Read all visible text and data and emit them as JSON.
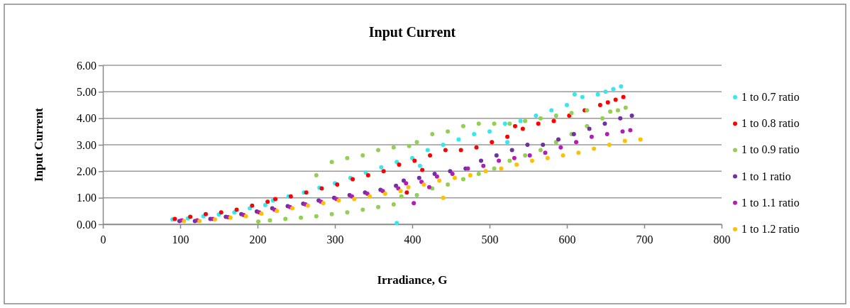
{
  "chart_data": {
    "type": "scatter",
    "title": "Input Current",
    "xlabel": "Irradiance, G",
    "ylabel": "Input Current",
    "xlim": [
      0,
      800
    ],
    "xticks": [
      0,
      100,
      200,
      300,
      400,
      500,
      600,
      700,
      800
    ],
    "ylim": [
      0,
      6
    ],
    "yticks": [
      {
        "value": 0,
        "label": "0.00"
      },
      {
        "value": 1,
        "label": "1.00"
      },
      {
        "value": 2,
        "label": "2.00"
      },
      {
        "value": 3,
        "label": "3.00"
      },
      {
        "value": 4,
        "label": "4.00"
      },
      {
        "value": 5,
        "label": "5.00"
      },
      {
        "value": 6,
        "label": "6.00"
      }
    ],
    "grid": "y",
    "legend": "right",
    "marker": "circle",
    "series": [
      {
        "name": "1 to 0.7 ratio",
        "color": "#33e8f0",
        "x": [
          90,
          110,
          130,
          150,
          170,
          190,
          210,
          220,
          240,
          260,
          280,
          300,
          320,
          340,
          360,
          380,
          380,
          400,
          410,
          420,
          440,
          460,
          480,
          500,
          520,
          523,
          540,
          560,
          580,
          600,
          610,
          620,
          640,
          650,
          660,
          670
        ],
        "values": [
          0.18,
          0.22,
          0.3,
          0.37,
          0.45,
          0.6,
          0.72,
          0.9,
          1.05,
          1.2,
          1.38,
          1.55,
          1.75,
          1.95,
          2.15,
          2.35,
          0.05,
          2.5,
          2.2,
          2.8,
          3.0,
          3.2,
          3.4,
          3.5,
          3.8,
          3.1,
          3.9,
          4.1,
          4.3,
          4.5,
          4.9,
          4.8,
          4.9,
          5.0,
          5.1,
          5.2
        ]
      },
      {
        "name": "1 to 0.8 ratio",
        "color": "#ff0000",
        "x": [
          93,
          113,
          133,
          153,
          173,
          193,
          213,
          223,
          243,
          263,
          283,
          303,
          323,
          343,
          363,
          383,
          393,
          403,
          413,
          423,
          443,
          463,
          483,
          503,
          523,
          533,
          543,
          563,
          583,
          603,
          623,
          643,
          653,
          663,
          673
        ],
        "values": [
          0.2,
          0.28,
          0.38,
          0.45,
          0.55,
          0.7,
          0.85,
          0.95,
          1.05,
          1.2,
          1.35,
          1.5,
          1.7,
          1.85,
          2.0,
          2.25,
          1.2,
          2.4,
          2.05,
          2.6,
          2.8,
          2.8,
          2.9,
          3.1,
          3.3,
          3.7,
          3.6,
          3.8,
          3.9,
          4.1,
          4.3,
          4.5,
          4.6,
          4.7,
          4.8
        ]
      },
      {
        "name": "1 to 0.9 ratio",
        "color": "#92d050",
        "x": [
          201,
          216,
          236,
          256,
          276,
          276,
          296,
          296,
          316,
          316,
          336,
          336,
          356,
          356,
          376,
          376,
          386,
          396,
          406,
          406,
          426,
          426,
          446,
          446,
          466,
          466,
          486,
          486,
          506,
          506,
          526,
          526,
          546,
          546,
          566,
          566,
          586,
          586,
          606,
          606,
          626,
          626,
          646,
          656,
          666,
          676
        ],
        "values": [
          0.1,
          0.15,
          0.2,
          0.25,
          0.3,
          1.85,
          0.38,
          2.35,
          0.45,
          2.5,
          0.55,
          2.6,
          0.65,
          2.8,
          0.75,
          2.9,
          1.05,
          2.95,
          1.1,
          3.1,
          1.35,
          3.4,
          1.5,
          3.5,
          1.7,
          3.7,
          1.9,
          3.8,
          2.1,
          3.8,
          2.4,
          3.8,
          2.6,
          3.9,
          2.8,
          4.0,
          3.1,
          4.1,
          3.4,
          4.2,
          3.7,
          4.3,
          4.0,
          4.25,
          4.3,
          4.4
        ]
      },
      {
        "name": "1 to 1 ratio",
        "color": "#7030a0",
        "x": [
          99,
          119,
          139,
          159,
          179,
          199,
          219,
          239,
          259,
          279,
          299,
          319,
          339,
          359,
          379,
          389,
          409,
          429,
          449,
          469,
          489,
          509,
          529,
          549,
          569,
          589,
          609,
          629,
          649,
          669,
          684
        ],
        "values": [
          0.12,
          0.12,
          0.2,
          0.28,
          0.38,
          0.48,
          0.6,
          0.68,
          0.78,
          0.9,
          1.0,
          1.1,
          1.2,
          1.3,
          1.45,
          1.65,
          1.75,
          1.9,
          2.0,
          2.1,
          2.4,
          2.6,
          2.8,
          3.0,
          3.0,
          3.2,
          3.4,
          3.6,
          3.8,
          4.0,
          4.1
        ]
      },
      {
        "name": "1 to 1.1 ratio",
        "color": "#b51cb5",
        "x": [
          102,
          122,
          142,
          162,
          182,
          202,
          222,
          242,
          262,
          282,
          302,
          322,
          342,
          362,
          382,
          392,
          402,
          412,
          422,
          432,
          452,
          472,
          492,
          512,
          532,
          552,
          572,
          592,
          612,
          632,
          652,
          672,
          682
        ],
        "values": [
          0.15,
          0.15,
          0.2,
          0.27,
          0.35,
          0.45,
          0.55,
          0.65,
          0.75,
          0.85,
          0.95,
          1.05,
          1.15,
          1.25,
          1.35,
          1.55,
          0.8,
          1.6,
          1.4,
          1.8,
          1.9,
          2.1,
          2.2,
          2.4,
          2.5,
          2.6,
          2.7,
          2.9,
          3.1,
          3.3,
          3.4,
          3.5,
          3.55
        ]
      },
      {
        "name": "1 to 1.2 ratio",
        "color": "#ffc000",
        "x": [
          105,
          125,
          145,
          165,
          185,
          205,
          225,
          245,
          265,
          285,
          305,
          325,
          345,
          365,
          385,
          395,
          415,
          435,
          440,
          455,
          475,
          495,
          515,
          535,
          555,
          575,
          595,
          615,
          635,
          655,
          675,
          695
        ],
        "values": [
          0.12,
          0.12,
          0.18,
          0.25,
          0.3,
          0.4,
          0.5,
          0.6,
          0.7,
          0.8,
          0.9,
          0.95,
          1.05,
          1.15,
          1.25,
          1.4,
          1.5,
          1.65,
          1.0,
          1.75,
          1.85,
          2.0,
          2.1,
          2.25,
          2.4,
          2.5,
          2.6,
          2.7,
          2.85,
          3.0,
          3.15,
          3.2
        ]
      }
    ]
  }
}
